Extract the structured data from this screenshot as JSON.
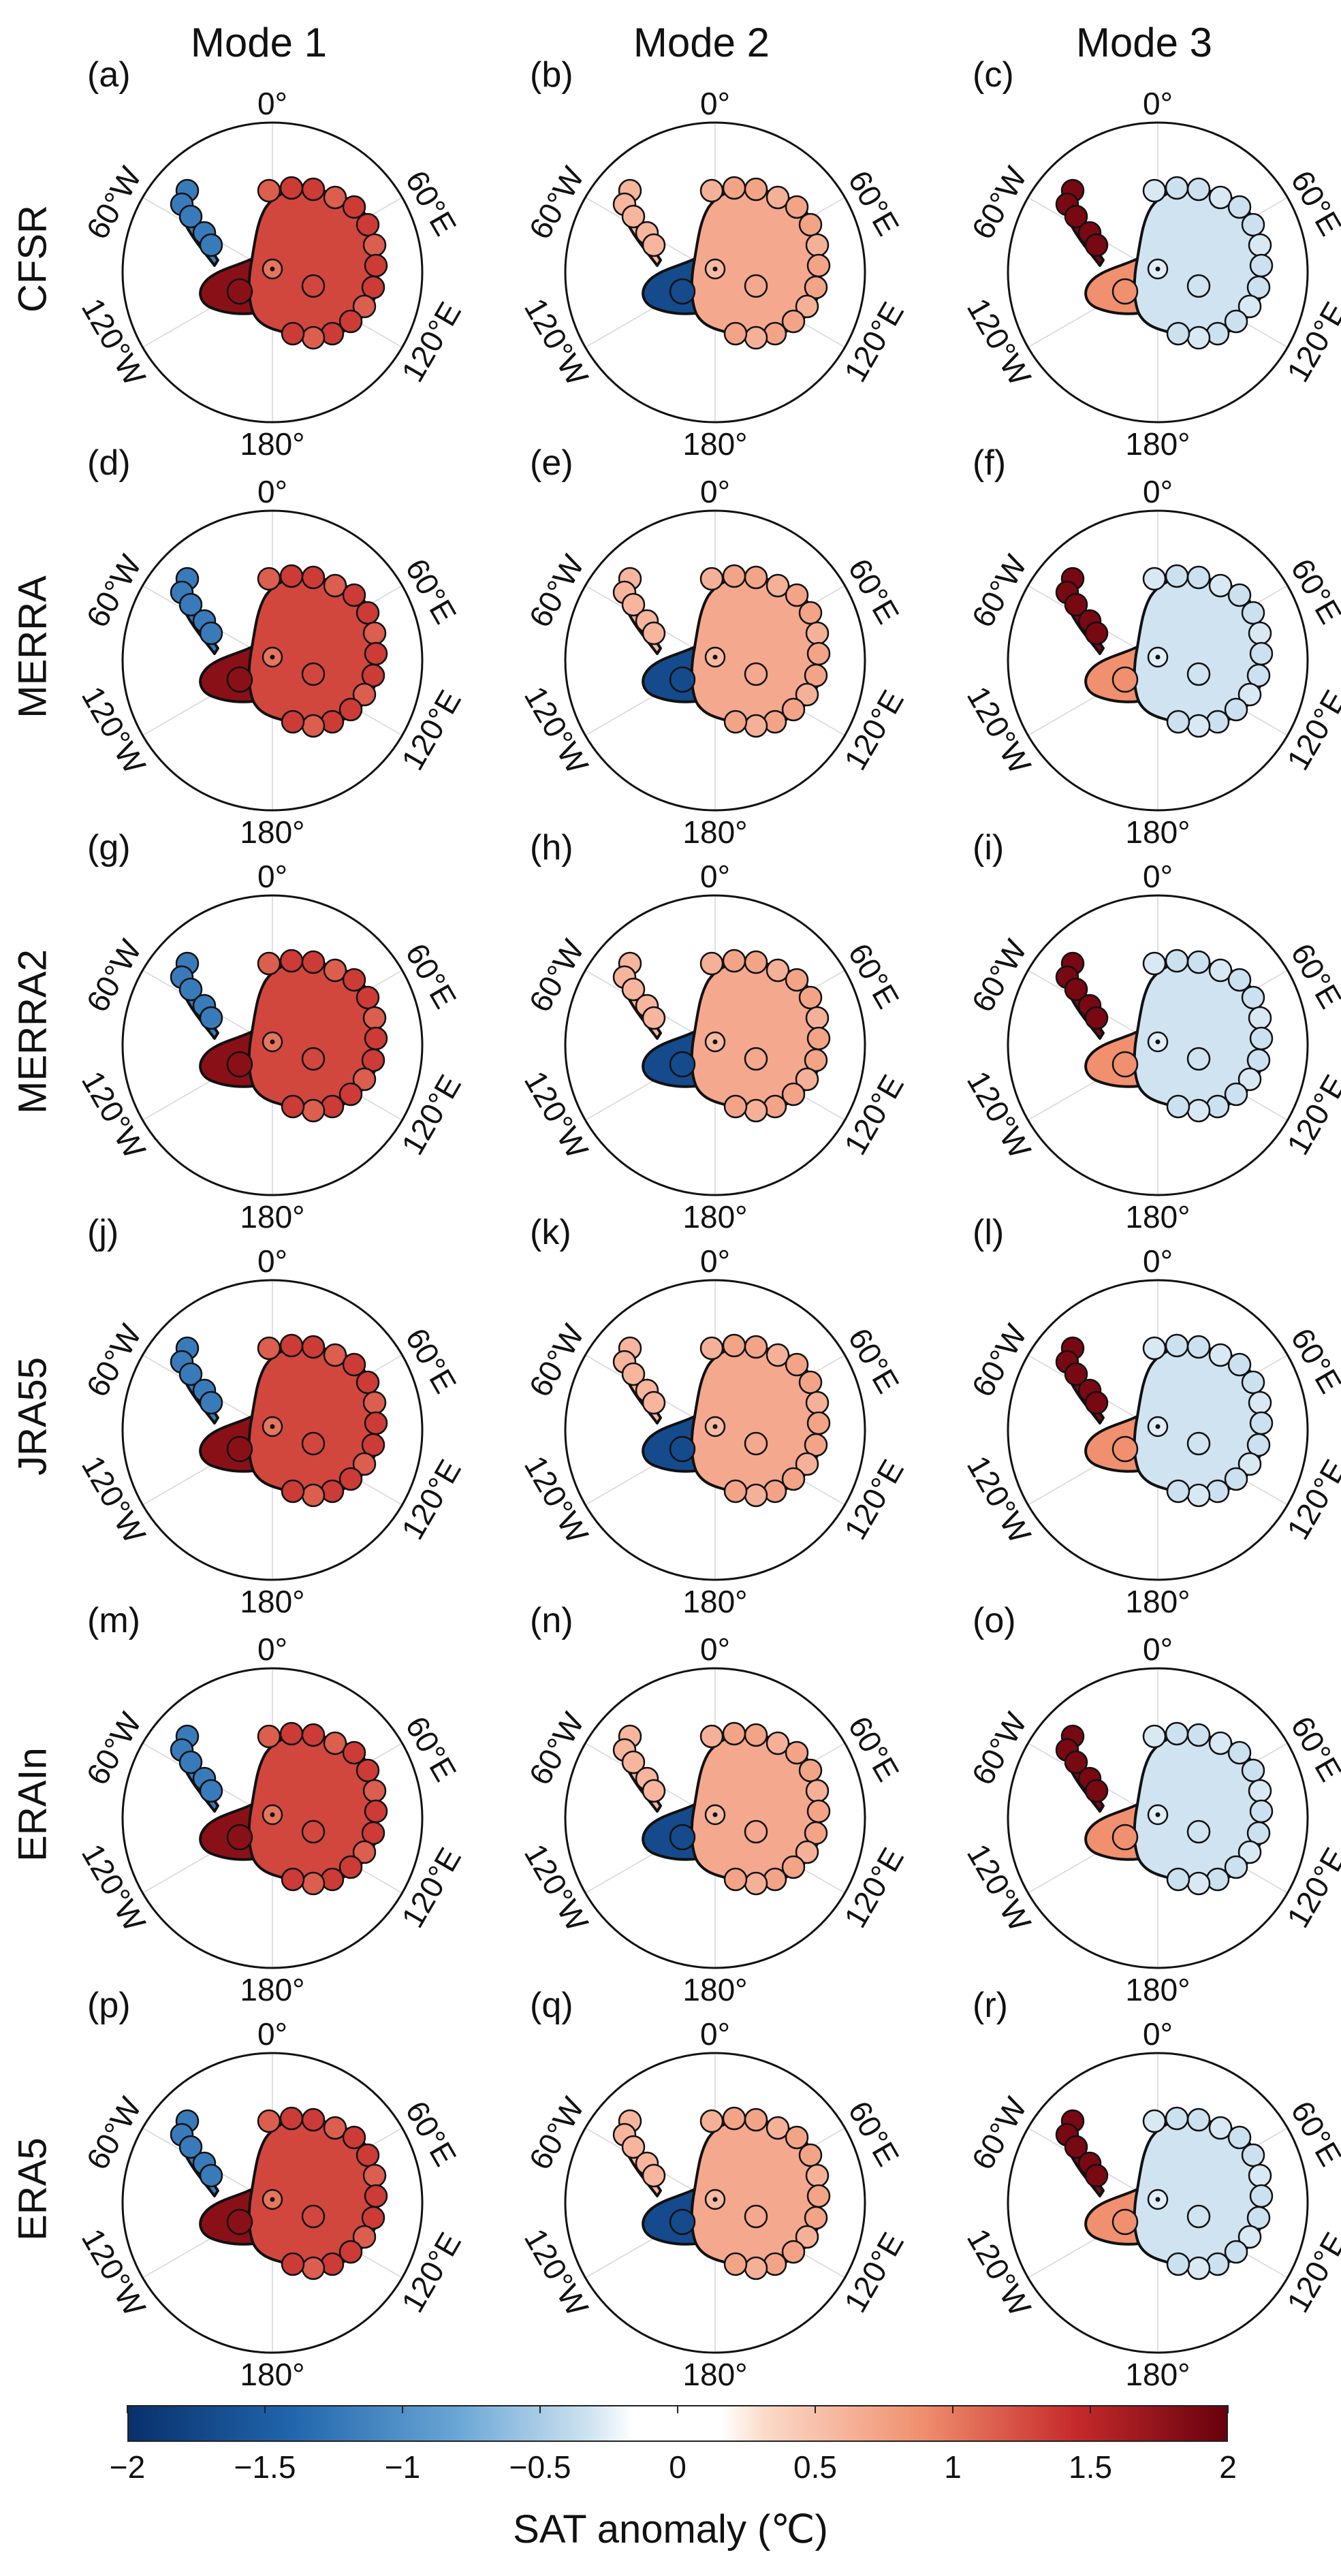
{
  "figure": {
    "columns": [
      "Mode 1",
      "Mode 2",
      "Mode 3"
    ],
    "rows": [
      "CFSR",
      "MERRA",
      "MERRA2",
      "JRA55",
      "ERAIn",
      "ERA5"
    ],
    "panel_labels": [
      "(a)",
      "(b)",
      "(c)",
      "(d)",
      "(e)",
      "(f)",
      "(g)",
      "(h)",
      "(i)",
      "(j)",
      "(k)",
      "(l)",
      "(m)",
      "(n)",
      "(o)",
      "(p)",
      "(q)",
      "(r)"
    ],
    "graticule_labels": {
      "top": "0°",
      "bottom": "180°",
      "upper_left": "60°W",
      "upper_right": "60°E",
      "lower_left": "120°W",
      "lower_right": "120°E"
    }
  },
  "colorbar": {
    "title": "SAT anomaly (℃)",
    "range": [
      -2,
      2
    ],
    "ticks": [
      "−2",
      "−1.5",
      "−1",
      "−0.5",
      "0",
      "0.5",
      "1",
      "1.5",
      "2"
    ],
    "colors": {
      "neg_max": "#08306b",
      "neg_mid": "#4f8fc4",
      "neutral": "#ffffff",
      "pos_mid": "#e8806a",
      "pos_max": "#67000d"
    }
  },
  "modes": {
    "mode1": {
      "description_values": {
        "antarctic_peninsula": -1.2,
        "west_antarctica": 1.8,
        "east_antarctica": 1.3
      }
    },
    "mode2": {
      "description_values": {
        "antarctic_peninsula": 0.6,
        "west_antarctica": -1.7,
        "east_antarctica": 0.7
      }
    },
    "mode3": {
      "description_values": {
        "antarctic_peninsula": 1.9,
        "west_antarctica": 0.9,
        "east_antarctica": -0.3
      }
    }
  }
}
